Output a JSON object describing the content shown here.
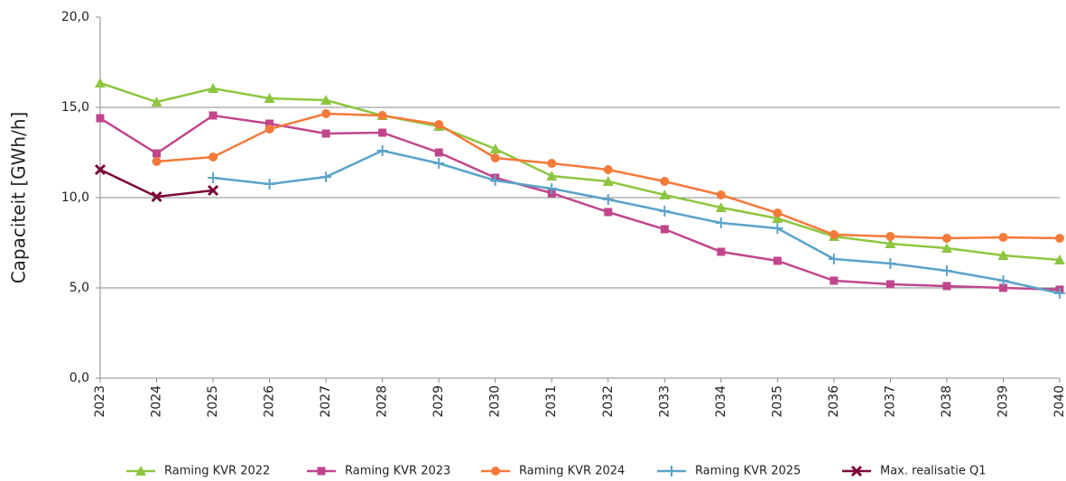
{
  "chart_data": {
    "type": "line",
    "y_label": "Capaciteit [GWh/h]",
    "x": [
      2023,
      2024,
      2025,
      2026,
      2027,
      2028,
      2029,
      2030,
      2031,
      2032,
      2033,
      2034,
      2035,
      2036,
      2037,
      2038,
      2039,
      2040
    ],
    "xlim": [
      2023,
      2040
    ],
    "xticks": [
      2023,
      2024,
      2025,
      2026,
      2027,
      2028,
      2029,
      2030,
      2031,
      2032,
      2033,
      2034,
      2035,
      2036,
      2037,
      2038,
      2039,
      2040
    ],
    "ylim": [
      0,
      20
    ],
    "yticks": [
      {
        "value": 0,
        "label": "0,0"
      },
      {
        "value": 5,
        "label": "5,0"
      },
      {
        "value": 10,
        "label": "10,0"
      },
      {
        "value": 15,
        "label": "15,0"
      },
      {
        "value": 20,
        "label": "20,0"
      }
    ],
    "grid": true,
    "legend": "bottom",
    "series": [
      {
        "name": "Raming KVR 2022",
        "color": "#8dc63f",
        "marker": "triangle",
        "values": [
          16.35,
          15.3,
          16.05,
          15.5,
          15.4,
          14.55,
          13.95,
          12.7,
          11.2,
          10.9,
          10.15,
          9.45,
          8.85,
          7.85,
          7.45,
          7.2,
          6.8,
          6.55
        ]
      },
      {
        "name": "Raming KVR 2023",
        "color": "#c0468b",
        "marker": "square",
        "values": [
          14.4,
          12.45,
          14.55,
          14.1,
          13.55,
          13.6,
          12.5,
          11.1,
          10.25,
          9.2,
          8.25,
          7.0,
          6.5,
          5.4,
          5.2,
          5.1,
          5.0,
          4.9
        ]
      },
      {
        "name": "Raming KVR 2024",
        "color": "#f47a3a",
        "marker": "circle",
        "values": [
          null,
          12.0,
          12.25,
          13.8,
          14.65,
          14.55,
          14.05,
          12.2,
          11.9,
          11.55,
          10.9,
          10.15,
          9.15,
          7.95,
          7.85,
          7.75,
          7.8,
          7.75
        ]
      },
      {
        "name": "Raming KVR 2025",
        "color": "#5ba3c8",
        "marker": "plus",
        "values": [
          null,
          null,
          11.1,
          10.75,
          11.15,
          12.6,
          11.9,
          10.95,
          10.5,
          9.9,
          9.25,
          8.6,
          8.3,
          6.6,
          6.35,
          5.95,
          5.4,
          4.7
        ]
      },
      {
        "name": "Max. realisatie Q1",
        "color": "#7b0a3a",
        "marker": "cross",
        "values": [
          11.55,
          10.05,
          10.4,
          null,
          null,
          null,
          null,
          null,
          null,
          null,
          null,
          null,
          null,
          null,
          null,
          null,
          null,
          null
        ]
      }
    ]
  }
}
